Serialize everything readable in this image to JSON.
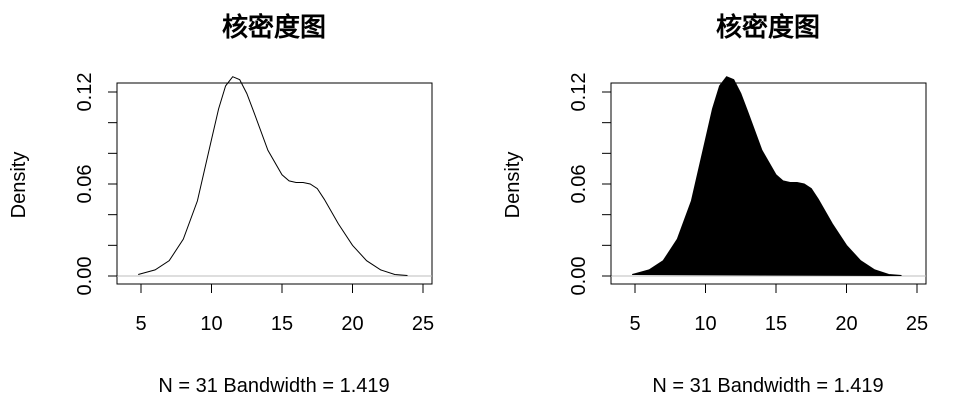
{
  "chart_data": [
    {
      "type": "area",
      "fill": "none",
      "title": "核密度图",
      "xlabel": "N = 31   Bandwidth = 1.419",
      "ylabel": "Density",
      "xlim": [
        4.5,
        25
      ],
      "ylim": [
        0,
        0.135
      ],
      "x_ticks": [
        5,
        10,
        15,
        20,
        25
      ],
      "y_ticks": [
        0.0,
        0.02,
        0.04,
        0.06,
        0.08,
        0.1,
        0.12
      ],
      "y_tick_labels": [
        {
          "value": 0.0,
          "label": "0.00"
        },
        {
          "value": 0.06,
          "label": "0.06"
        },
        {
          "value": 0.12,
          "label": "0.12"
        }
      ],
      "x": [
        4.8,
        6,
        7,
        8,
        9,
        10,
        10.5,
        11,
        11.5,
        12,
        12.5,
        13,
        14,
        15,
        15.5,
        16,
        16.5,
        17,
        17.5,
        18,
        19,
        20,
        21,
        22,
        23,
        23.9
      ],
      "y": [
        0.001,
        0.004,
        0.01,
        0.024,
        0.049,
        0.089,
        0.109,
        0.124,
        0.13,
        0.128,
        0.119,
        0.107,
        0.082,
        0.066,
        0.062,
        0.061,
        0.061,
        0.06,
        0.057,
        0.05,
        0.034,
        0.02,
        0.01,
        0.004,
        0.001,
        0.0003
      ],
      "zero_line_color": "#bebebe",
      "line_color": "#000000"
    },
    {
      "type": "area",
      "fill": "#000000",
      "title": "核密度图",
      "xlabel": "N = 31   Bandwidth = 1.419",
      "ylabel": "Density",
      "xlim": [
        4.5,
        25
      ],
      "ylim": [
        0,
        0.135
      ],
      "x_ticks": [
        5,
        10,
        15,
        20,
        25
      ],
      "y_ticks": [
        0.0,
        0.02,
        0.04,
        0.06,
        0.08,
        0.1,
        0.12
      ],
      "y_tick_labels": [
        {
          "value": 0.0,
          "label": "0.00"
        },
        {
          "value": 0.06,
          "label": "0.06"
        },
        {
          "value": 0.12,
          "label": "0.12"
        }
      ],
      "x": [
        4.8,
        6,
        7,
        8,
        9,
        10,
        10.5,
        11,
        11.5,
        12,
        12.5,
        13,
        14,
        15,
        15.5,
        16,
        16.5,
        17,
        17.5,
        18,
        19,
        20,
        21,
        22,
        23,
        23.9
      ],
      "y": [
        0.001,
        0.004,
        0.01,
        0.024,
        0.049,
        0.089,
        0.109,
        0.124,
        0.13,
        0.128,
        0.119,
        0.107,
        0.082,
        0.066,
        0.062,
        0.061,
        0.061,
        0.06,
        0.057,
        0.05,
        0.034,
        0.02,
        0.01,
        0.004,
        0.001,
        0.0003
      ],
      "zero_line_color": "#bebebe",
      "line_color": "#000000"
    }
  ]
}
